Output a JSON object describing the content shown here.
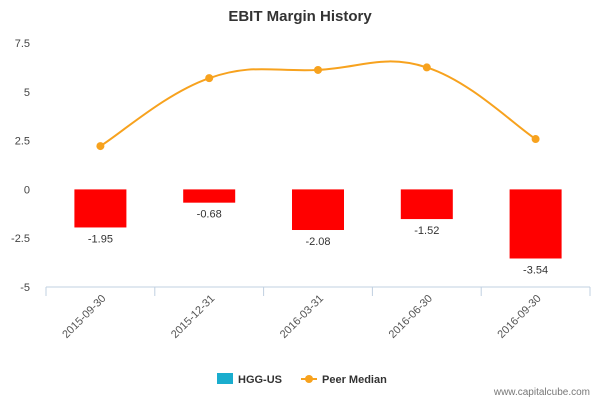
{
  "chart_data": {
    "type": "bar",
    "title": "EBIT Margin History",
    "xlabel": "",
    "ylabel": "",
    "categories": [
      "2015-09-30",
      "2015-12-31",
      "2016-03-31",
      "2016-06-30",
      "2016-09-30"
    ],
    "ylim": [
      -5,
      7.5
    ],
    "yticks": [
      "7.5",
      "5",
      "2.5",
      "0",
      "-2.5",
      "-5"
    ],
    "grid": false,
    "legend_position": "bottom-center",
    "series": [
      {
        "name": "HGG-US",
        "type": "bar",
        "color": "#ff0000",
        "legend_color": "#1aadce",
        "values": [
          -1.95,
          -0.68,
          -2.08,
          -1.52,
          -3.54
        ],
        "labels": [
          "-1.95",
          "-0.68",
          "-2.08",
          "-1.52",
          "-3.54"
        ]
      },
      {
        "name": "Peer Median",
        "type": "line",
        "color": "#f7a21e",
        "values": [
          2.22,
          5.7,
          6.12,
          6.25,
          2.58
        ]
      }
    ]
  },
  "credit": "www.capitalcube.com"
}
